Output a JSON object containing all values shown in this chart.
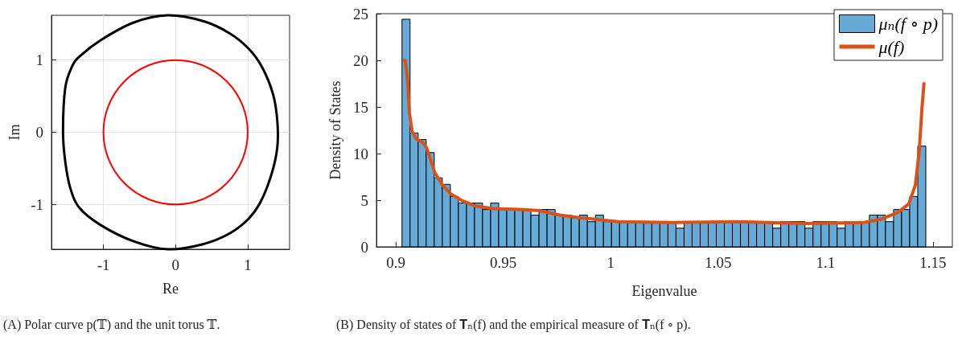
{
  "chart_data": [
    {
      "type": "line",
      "xlabel": "Re",
      "ylabel": "Im",
      "xlim": [
        -1.72,
        1.58
      ],
      "ylim": [
        -1.62,
        1.62
      ],
      "xticks": [
        -1,
        0,
        1
      ],
      "yticks": [
        -1,
        0,
        1
      ],
      "grid": true,
      "legend": false,
      "annotations": [
        "(A) Polar curve p(𝕋) and the unit torus 𝕋."
      ]
    },
    {
      "type": "histogram",
      "xlabel": "Eigenvalue",
      "ylabel": "Density of States",
      "xlim": [
        0.891,
        1.159
      ],
      "ylim": [
        0,
        25
      ],
      "xticks": [
        0.9,
        0.95,
        1,
        1.05,
        1.1,
        1.15
      ],
      "yticks": [
        0,
        5,
        10,
        15,
        20,
        25
      ],
      "legend": "top right",
      "annotations": [
        "(B) Density of states of 𝐓ₙ(f) and the empirical measure of 𝐓ₙ(f ∘ p)."
      ],
      "bins": [
        0.9029,
        0.90665,
        0.9104,
        0.91415,
        0.9179,
        0.92165,
        0.9254,
        0.92915,
        0.9329,
        0.93665,
        0.9404,
        0.94415,
        0.9479,
        0.95165,
        0.9554,
        0.95915,
        0.9629,
        0.96665,
        0.9704,
        0.97415,
        0.9779,
        0.98165,
        0.9854,
        0.98915,
        0.9929,
        0.99665,
        1.0004,
        1.00415,
        1.0079,
        1.01165,
        1.0154,
        1.01915,
        1.0229,
        1.02665,
        1.0304,
        1.03415,
        1.0379,
        1.04165,
        1.0454,
        1.04915,
        1.0529,
        1.05665,
        1.0604,
        1.06415,
        1.0679,
        1.07165,
        1.0754,
        1.07915,
        1.0829,
        1.08665,
        1.0904,
        1.09415,
        1.0979,
        1.10165,
        1.1054,
        1.10915,
        1.1129,
        1.11665,
        1.1204,
        1.12415,
        1.1279,
        1.13165,
        1.1354,
        1.13915,
        1.1429,
        1.14665
      ],
      "series": [
        {
          "type": "histogram",
          "name": "μₙ(f ∘ p)",
          "color": "#66aad8",
          "values": [
            24.4,
            12.2,
            11.5,
            10.1,
            7.4,
            6.7,
            5.4,
            4.7,
            4.7,
            4.7,
            4.0,
            4.7,
            4.0,
            4.0,
            4.0,
            4.0,
            3.4,
            4.0,
            4.0,
            3.4,
            3.4,
            3.1,
            3.4,
            2.7,
            3.4,
            2.7,
            2.7,
            2.7,
            2.7,
            2.7,
            2.7,
            2.7,
            2.7,
            2.7,
            2.0,
            2.7,
            2.7,
            2.7,
            2.7,
            2.7,
            2.7,
            2.7,
            2.7,
            2.7,
            2.7,
            2.7,
            2.0,
            2.7,
            2.7,
            2.7,
            2.0,
            2.7,
            2.7,
            2.7,
            2.0,
            2.7,
            2.7,
            2.7,
            3.4,
            3.4,
            2.7,
            4.0,
            4.0,
            5.4,
            10.8
          ]
        },
        {
          "type": "line",
          "name": "μ(f)",
          "color": "#d95319",
          "x": [
            0.9038,
            0.9044,
            0.9055,
            0.9063,
            0.9076,
            0.9094,
            0.9125,
            0.9144,
            0.9181,
            0.9218,
            0.9255,
            0.9305,
            0.9367,
            0.9454,
            0.9577,
            0.9664,
            0.9763,
            0.9862,
            0.9912,
            1.0036,
            1.0284,
            1.0594,
            1.0903,
            1.1176,
            1.1263,
            1.1337,
            1.1387,
            1.1418,
            1.1436,
            1.1449,
            1.1458
          ],
          "values": [
            20.0,
            20.0,
            17.8,
            14.4,
            12.4,
            11.6,
            11.2,
            10.6,
            8.0,
            6.6,
            5.7,
            5.0,
            4.4,
            4.1,
            4.0,
            3.9,
            3.4,
            3.1,
            3.0,
            2.7,
            2.6,
            2.7,
            2.5,
            2.6,
            3.0,
            3.7,
            4.6,
            6.6,
            10.3,
            15.0,
            17.5
          ]
        }
      ]
    }
  ]
}
